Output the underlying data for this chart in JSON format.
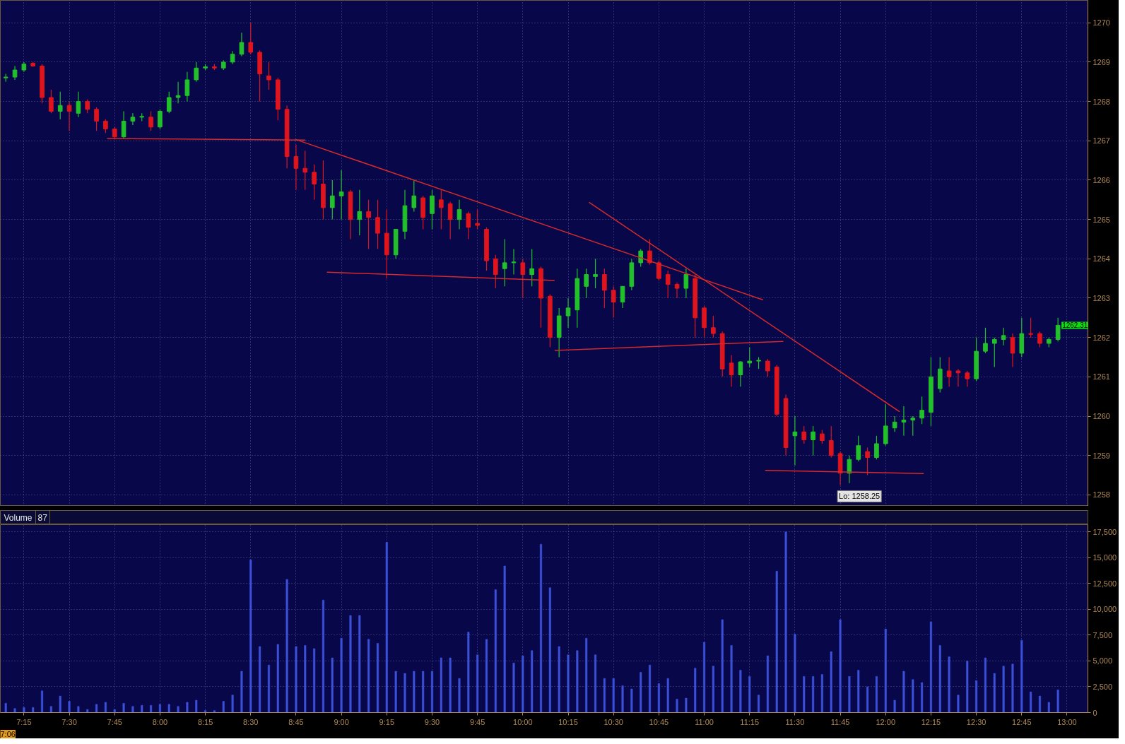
{
  "chart_data": [
    {
      "type": "candlestick",
      "x": [
        7.15,
        7.2,
        7.25,
        7.3,
        7.35,
        7.4,
        7.45,
        7.5,
        7.55,
        7.6,
        7.65,
        7.7,
        7.75,
        7.8,
        7.85,
        7.9,
        7.95,
        8.0,
        8.05,
        8.1,
        8.15,
        8.2,
        8.25,
        8.3,
        8.35,
        8.4,
        8.45,
        8.5,
        8.55,
        8.6,
        8.65,
        8.7,
        8.75,
        8.8,
        8.85,
        8.9,
        8.95,
        9.0,
        9.05,
        9.1,
        9.15,
        9.2,
        9.25,
        9.3,
        9.35,
        9.4,
        9.45,
        9.5,
        9.55,
        9.6,
        9.65,
        9.7,
        9.75,
        9.8,
        9.85,
        9.9,
        9.95,
        10.0,
        10.05,
        10.1,
        10.15,
        10.2,
        10.25,
        10.3,
        10.35,
        10.4,
        10.45,
        10.5,
        10.55,
        10.6,
        10.65,
        10.7,
        10.75,
        10.8,
        10.85,
        10.9,
        10.95,
        11.0,
        11.05,
        11.1,
        11.15,
        11.2,
        11.25,
        11.3,
        11.35,
        11.4,
        11.45,
        11.5,
        11.55,
        11.6,
        11.65,
        11.7,
        11.75,
        11.8,
        11.85,
        11.9,
        11.95,
        12.0,
        12.05,
        12.1,
        12.15,
        12.2,
        12.25,
        12.3,
        12.35,
        12.4,
        12.45,
        12.5,
        12.55,
        12.6,
        12.65,
        12.7,
        12.75,
        12.8,
        12.85,
        12.9,
        12.95
      ],
      "ohlc": [
        [
          1268.6,
          1268.7,
          1268.5,
          1268.62
        ],
        [
          1268.62,
          1268.9,
          1268.55,
          1268.8
        ],
        [
          1268.8,
          1269.0,
          1268.75,
          1268.95
        ],
        [
          1268.97,
          1269.0,
          1268.88,
          1268.9
        ],
        [
          1268.9,
          1268.95,
          1267.95,
          1268.1
        ],
        [
          1268.1,
          1268.3,
          1267.7,
          1267.75
        ],
        [
          1267.75,
          1268.25,
          1267.55,
          1267.9
        ],
        [
          1267.9,
          1268.0,
          1267.25,
          1267.75
        ],
        [
          1267.7,
          1268.25,
          1267.6,
          1268.0
        ],
        [
          1268.0,
          1268.05,
          1267.7,
          1267.8
        ],
        [
          1267.8,
          1267.85,
          1267.25,
          1267.5
        ],
        [
          1267.5,
          1267.55,
          1267.2,
          1267.3
        ],
        [
          1267.3,
          1267.35,
          1267.03,
          1267.1
        ],
        [
          1267.1,
          1267.75,
          1267.05,
          1267.5
        ],
        [
          1267.5,
          1267.7,
          1267.4,
          1267.6
        ],
        [
          1267.6,
          1267.7,
          1267.5,
          1267.62
        ],
        [
          1267.6,
          1267.75,
          1267.25,
          1267.35
        ],
        [
          1267.35,
          1267.8,
          1267.3,
          1267.75
        ],
        [
          1267.75,
          1268.25,
          1267.7,
          1268.1
        ],
        [
          1268.1,
          1268.5,
          1267.95,
          1268.15
        ],
        [
          1268.15,
          1268.75,
          1268.0,
          1268.55
        ],
        [
          1268.55,
          1269.0,
          1268.5,
          1268.85
        ],
        [
          1268.85,
          1268.95,
          1268.8,
          1268.88
        ],
        [
          1268.88,
          1268.95,
          1268.8,
          1268.85
        ],
        [
          1268.85,
          1269.05,
          1268.8,
          1269.0
        ],
        [
          1269.0,
          1269.28,
          1268.95,
          1269.2
        ],
        [
          1269.2,
          1269.75,
          1269.15,
          1269.5
        ],
        [
          1269.5,
          1270.0,
          1269.2,
          1269.25
        ],
        [
          1269.25,
          1269.3,
          1268.0,
          1268.7
        ],
        [
          1268.65,
          1269.0,
          1268.3,
          1268.55
        ],
        [
          1268.55,
          1268.6,
          1267.52,
          1267.8
        ],
        [
          1267.8,
          1267.9,
          1266.3,
          1266.6
        ],
        [
          1266.6,
          1266.9,
          1265.75,
          1266.3
        ],
        [
          1266.3,
          1266.75,
          1265.75,
          1266.2
        ],
        [
          1266.2,
          1266.4,
          1265.5,
          1265.9
        ],
        [
          1265.9,
          1266.5,
          1265.0,
          1265.3
        ],
        [
          1265.3,
          1266.0,
          1265.0,
          1265.6
        ],
        [
          1265.6,
          1266.25,
          1265.0,
          1265.7
        ],
        [
          1265.7,
          1265.75,
          1264.5,
          1265.0
        ],
        [
          1265.0,
          1265.75,
          1264.6,
          1265.2
        ],
        [
          1265.2,
          1265.5,
          1264.25,
          1265.05
        ],
        [
          1265.05,
          1265.5,
          1264.25,
          1264.65
        ],
        [
          1264.65,
          1265.25,
          1263.5,
          1264.1
        ],
        [
          1264.1,
          1264.75,
          1264.0,
          1264.75
        ],
        [
          1264.7,
          1265.75,
          1264.5,
          1265.35
        ],
        [
          1265.3,
          1266.0,
          1265.2,
          1265.6
        ],
        [
          1265.55,
          1265.6,
          1264.75,
          1265.05
        ],
        [
          1265.15,
          1265.75,
          1264.75,
          1265.6
        ],
        [
          1265.5,
          1265.75,
          1264.75,
          1265.3
        ],
        [
          1265.4,
          1265.45,
          1264.5,
          1265.0
        ],
        [
          1265.0,
          1265.5,
          1264.75,
          1265.25
        ],
        [
          1265.15,
          1265.2,
          1264.5,
          1264.8
        ],
        [
          1264.9,
          1265.25,
          1264.75,
          1264.85
        ],
        [
          1264.75,
          1264.8,
          1263.7,
          1263.95
        ],
        [
          1264.0,
          1264.1,
          1263.25,
          1263.6
        ],
        [
          1263.75,
          1264.5,
          1263.3,
          1263.9
        ],
        [
          1263.9,
          1264.25,
          1263.6,
          1263.92
        ],
        [
          1263.9,
          1264.0,
          1263.0,
          1263.6
        ],
        [
          1263.6,
          1264.25,
          1263.3,
          1263.75
        ],
        [
          1263.75,
          1263.8,
          1262.25,
          1263.0
        ],
        [
          1263.05,
          1263.1,
          1261.75,
          1262.0
        ],
        [
          1262.0,
          1262.75,
          1261.5,
          1262.55
        ],
        [
          1262.55,
          1263.0,
          1262.25,
          1262.75
        ],
        [
          1262.7,
          1263.75,
          1262.25,
          1263.5
        ],
        [
          1263.3,
          1263.75,
          1263.0,
          1263.6
        ],
        [
          1263.55,
          1264.0,
          1263.25,
          1263.6
        ],
        [
          1263.6,
          1263.75,
          1262.75,
          1263.2
        ],
        [
          1263.2,
          1263.3,
          1262.5,
          1262.9
        ],
        [
          1262.9,
          1263.3,
          1262.75,
          1263.3
        ],
        [
          1263.3,
          1264.0,
          1263.2,
          1263.9
        ],
        [
          1263.9,
          1264.25,
          1263.8,
          1264.2
        ],
        [
          1264.2,
          1264.5,
          1263.85,
          1263.9
        ],
        [
          1263.9,
          1263.95,
          1263.45,
          1263.5
        ],
        [
          1263.6,
          1263.7,
          1263.0,
          1263.35
        ],
        [
          1263.35,
          1263.4,
          1263.0,
          1263.25
        ],
        [
          1263.25,
          1263.75,
          1263.0,
          1263.6
        ],
        [
          1263.5,
          1263.6,
          1262.0,
          1262.5
        ],
        [
          1262.75,
          1262.8,
          1262.0,
          1262.25
        ],
        [
          1262.25,
          1262.55,
          1262.0,
          1262.1
        ],
        [
          1262.1,
          1262.15,
          1261.0,
          1261.2
        ],
        [
          1261.35,
          1261.55,
          1260.75,
          1261.05
        ],
        [
          1261.05,
          1261.4,
          1260.75,
          1261.38
        ],
        [
          1261.35,
          1261.75,
          1261.25,
          1261.4
        ],
        [
          1261.4,
          1261.5,
          1261.2,
          1261.42
        ],
        [
          1261.4,
          1261.45,
          1261.0,
          1261.15
        ],
        [
          1261.25,
          1261.3,
          1260.0,
          1260.05
        ],
        [
          1260.45,
          1260.55,
          1259.0,
          1259.2
        ],
        [
          1259.5,
          1260.0,
          1258.75,
          1259.6
        ],
        [
          1259.6,
          1259.75,
          1259.3,
          1259.4
        ],
        [
          1259.4,
          1259.75,
          1259.0,
          1259.6
        ],
        [
          1259.55,
          1259.65,
          1259.3,
          1259.38
        ],
        [
          1259.38,
          1259.75,
          1258.95,
          1259.0
        ],
        [
          1259.05,
          1259.1,
          1258.25,
          1258.55
        ],
        [
          1258.55,
          1259.0,
          1258.3,
          1258.9
        ],
        [
          1258.9,
          1259.5,
          1258.85,
          1259.25
        ],
        [
          1259.1,
          1259.2,
          1258.5,
          1258.95
        ],
        [
          1258.95,
          1259.5,
          1258.9,
          1259.3
        ],
        [
          1259.3,
          1260.3,
          1259.25,
          1259.75
        ],
        [
          1259.7,
          1260.0,
          1259.6,
          1259.85
        ],
        [
          1259.85,
          1260.25,
          1259.5,
          1259.9
        ],
        [
          1259.9,
          1260.0,
          1259.5,
          1259.95
        ],
        [
          1259.95,
          1260.5,
          1259.8,
          1260.15
        ],
        [
          1260.1,
          1261.5,
          1259.75,
          1261.0
        ],
        [
          1260.7,
          1261.5,
          1260.6,
          1261.2
        ],
        [
          1261.15,
          1261.5,
          1260.75,
          1261.0
        ],
        [
          1261.15,
          1261.2,
          1260.75,
          1261.1
        ],
        [
          1261.1,
          1261.15,
          1260.75,
          1260.95
        ],
        [
          1260.95,
          1262.0,
          1260.9,
          1261.65
        ],
        [
          1261.65,
          1262.25,
          1261.6,
          1261.85
        ],
        [
          1261.85,
          1262.0,
          1261.25,
          1261.95
        ],
        [
          1261.95,
          1262.25,
          1261.8,
          1262.05
        ],
        [
          1262.0,
          1262.1,
          1261.25,
          1261.6
        ],
        [
          1261.6,
          1262.5,
          1261.5,
          1262.1
        ],
        [
          1262.1,
          1262.5,
          1262.0,
          1262.08
        ],
        [
          1262.1,
          1262.15,
          1261.75,
          1261.85
        ],
        [
          1261.85,
          1262.0,
          1261.75,
          1261.95
        ],
        [
          1261.95,
          1262.5,
          1261.9,
          1262.31
        ]
      ],
      "colors": [
        "#22c02a",
        "#22c02a",
        "#22c02a",
        "#e0141c",
        "#e0141c",
        "#e0141c",
        "#22c02a",
        "#e0141c",
        "#22c02a",
        "#e0141c",
        "#e0141c",
        "#e0141c",
        "#e0141c",
        "#22c02a",
        "#22c02a",
        "#22c02a",
        "#e0141c",
        "#22c02a",
        "#22c02a",
        "#22c02a",
        "#22c02a",
        "#22c02a",
        "#22c02a",
        "#e0141c",
        "#22c02a",
        "#22c02a",
        "#22c02a",
        "#e0141c",
        "#e0141c",
        "#e0141c",
        "#e0141c",
        "#e0141c",
        "#e0141c",
        "#e0141c",
        "#e0141c",
        "#e0141c",
        "#22c02a",
        "#22c02a",
        "#e0141c",
        "#22c02a",
        "#e0141c",
        "#e0141c",
        "#e0141c",
        "#22c02a",
        "#22c02a",
        "#22c02a",
        "#e0141c",
        "#22c02a",
        "#e0141c",
        "#e0141c",
        "#22c02a",
        "#e0141c",
        "#e0141c",
        "#e0141c",
        "#e0141c",
        "#22c02a",
        "#22c02a",
        "#e0141c",
        "#22c02a",
        "#e0141c",
        "#e0141c",
        "#22c02a",
        "#22c02a",
        "#22c02a",
        "#22c02a",
        "#22c02a",
        "#e0141c",
        "#e0141c",
        "#22c02a",
        "#22c02a",
        "#22c02a",
        "#e0141c",
        "#e0141c",
        "#e0141c",
        "#e0141c",
        "#22c02a",
        "#e0141c",
        "#e0141c",
        "#e0141c",
        "#e0141c",
        "#e0141c",
        "#22c02a",
        "#22c02a",
        "#22c02a",
        "#e0141c",
        "#e0141c",
        "#e0141c",
        "#22c02a",
        "#e0141c",
        "#22c02a",
        "#e0141c",
        "#e0141c",
        "#e0141c",
        "#22c02a",
        "#22c02a",
        "#e0141c",
        "#22c02a",
        "#22c02a",
        "#22c02a",
        "#22c02a",
        "#22c02a",
        "#22c02a",
        "#22c02a",
        "#22c02a",
        "#e0141c",
        "#e0141c",
        "#e0141c",
        "#22c02a",
        "#22c02a",
        "#22c02a",
        "#22c02a",
        "#e0141c",
        "#22c02a",
        "#e0141c",
        "#e0141c",
        "#22c02a",
        "#22c02a"
      ],
      "series": [
        {
          "type": "line",
          "color": "#d42a2a",
          "x": [
            7.71,
            8.8
          ],
          "values": [
            1267.06,
            1267.02
          ]
        },
        {
          "type": "line",
          "color": "#d42a2a",
          "x": [
            8.75,
            11.322
          ],
          "values": [
            1267.03,
            1262.96
          ]
        },
        {
          "type": "line",
          "color": "#d42a2a",
          "x": [
            8.922,
            10.173
          ],
          "values": [
            1263.66,
            1263.45
          ]
        },
        {
          "type": "line",
          "color": "#d42a2a",
          "x": [
            10.178,
            11.434
          ],
          "values": [
            1261.67,
            1261.9
          ]
        },
        {
          "type": "line",
          "color": "#d42a2a",
          "x": [
            10.367,
            12.075
          ],
          "values": [
            1265.43,
            1260.12
          ]
        },
        {
          "type": "line",
          "color": "#d42a2a",
          "x": [
            11.338,
            12.208
          ],
          "values": [
            1258.62,
            1258.54
          ]
        }
      ],
      "xlim": [
        7.12,
        13.115
      ],
      "ylim": [
        1257.71,
        1270.57
      ],
      "xticks": [
        7.25,
        7.5,
        7.75,
        8,
        8.25,
        8.5,
        8.75,
        9,
        9.25,
        9.5,
        9.75,
        10,
        10.25,
        10.5,
        10.75,
        11,
        11.25,
        11.5,
        11.75,
        12,
        12.25,
        12.5,
        12.75,
        13
      ],
      "yticks": [
        1258,
        1259,
        1260,
        1261,
        1262,
        1263,
        1264,
        1265,
        1266,
        1267,
        1268,
        1269,
        1270
      ],
      "grid": true,
      "tick_labels": "y",
      "annotations": [
        {
          "text": "Lo: 1258.25",
          "x": 11.75,
          "y": 1258.25
        },
        {
          "text": "1262.31",
          "x": 12.95,
          "y": 1262.31
        }
      ]
    },
    {
      "type": "bar",
      "title": "Volume",
      "subtitle": "87",
      "x": [
        7.15,
        7.2,
        7.25,
        7.3,
        7.35,
        7.4,
        7.45,
        7.5,
        7.55,
        7.6,
        7.65,
        7.7,
        7.75,
        7.8,
        7.85,
        7.9,
        7.95,
        8.0,
        8.05,
        8.1,
        8.15,
        8.2,
        8.25,
        8.3,
        8.35,
        8.4,
        8.45,
        8.5,
        8.55,
        8.6,
        8.65,
        8.7,
        8.75,
        8.8,
        8.85,
        8.9,
        8.95,
        9.0,
        9.05,
        9.1,
        9.15,
        9.2,
        9.25,
        9.3,
        9.35,
        9.4,
        9.45,
        9.5,
        9.55,
        9.6,
        9.65,
        9.7,
        9.75,
        9.8,
        9.85,
        9.9,
        9.95,
        10.0,
        10.05,
        10.1,
        10.15,
        10.2,
        10.25,
        10.3,
        10.35,
        10.4,
        10.45,
        10.5,
        10.55,
        10.6,
        10.65,
        10.7,
        10.75,
        10.8,
        10.85,
        10.9,
        10.95,
        11.0,
        11.05,
        11.1,
        11.15,
        11.2,
        11.25,
        11.3,
        11.35,
        11.4,
        11.45,
        11.5,
        11.55,
        11.6,
        11.65,
        11.7,
        11.75,
        11.8,
        11.85,
        11.9,
        11.95,
        12.0,
        12.05,
        12.1,
        12.15,
        12.2,
        12.25,
        12.3,
        12.35,
        12.4,
        12.45,
        12.5,
        12.55,
        12.6,
        12.65,
        12.7,
        12.75,
        12.8,
        12.85,
        12.9,
        12.95
      ],
      "values": [
        900,
        400,
        500,
        500,
        2100,
        600,
        1600,
        1100,
        600,
        300,
        800,
        1000,
        300,
        900,
        600,
        700,
        700,
        800,
        800,
        600,
        1000,
        1200,
        200,
        200,
        1100,
        1700,
        4000,
        14800,
        6400,
        4600,
        6600,
        12900,
        6400,
        6500,
        6200,
        10900,
        5300,
        7200,
        9400,
        9400,
        7100,
        6700,
        16500,
        4000,
        3800,
        4000,
        4000,
        4000,
        5300,
        5300,
        3300,
        7800,
        5600,
        7100,
        11900,
        14200,
        4800,
        5500,
        6000,
        16300,
        12100,
        6400,
        5600,
        6000,
        7200,
        5600,
        3300,
        3300,
        2600,
        2300,
        3900,
        4600,
        2800,
        3300,
        1300,
        1400,
        4300,
        6800,
        4500,
        9000,
        6500,
        4100,
        3500,
        1700,
        5500,
        13700,
        17500,
        7600,
        3500,
        3500,
        3700,
        5900,
        9000,
        3500,
        4100,
        2500,
        3500,
        8100,
        1200,
        4000,
        3200,
        2900,
        8800,
        6500,
        5400,
        1700,
        5000,
        3100,
        5300,
        3800,
        4500,
        4700,
        7000,
        2000,
        1600,
        1000,
        2200
      ],
      "color": "#3c50d8",
      "xlim": [
        7.12,
        13.115
      ],
      "ylim": [
        0,
        18200
      ],
      "xticks": [
        {
          "value": 7.25,
          "label": "7:15"
        },
        {
          "value": 7.5,
          "label": "7:30"
        },
        {
          "value": 7.75,
          "label": "7:45"
        },
        {
          "value": 8,
          "label": "8:00"
        },
        {
          "value": 8.25,
          "label": "8:15"
        },
        {
          "value": 8.5,
          "label": "8:30"
        },
        {
          "value": 8.75,
          "label": "8:45"
        },
        {
          "value": 9,
          "label": "9:00"
        },
        {
          "value": 9.25,
          "label": "9:15"
        },
        {
          "value": 9.5,
          "label": "9:30"
        },
        {
          "value": 9.75,
          "label": "9:45"
        },
        {
          "value": 10,
          "label": "10:00"
        },
        {
          "value": 10.25,
          "label": "10:15"
        },
        {
          "value": 10.5,
          "label": "10:30"
        },
        {
          "value": 10.75,
          "label": "10:45"
        },
        {
          "value": 11,
          "label": "11:00"
        },
        {
          "value": 11.25,
          "label": "11:15"
        },
        {
          "value": 11.5,
          "label": "11:30"
        },
        {
          "value": 11.75,
          "label": "11:45"
        },
        {
          "value": 12,
          "label": "12:00"
        },
        {
          "value": 12.25,
          "label": "12:15"
        },
        {
          "value": 12.5,
          "label": "12:30"
        },
        {
          "value": 12.75,
          "label": "12:45"
        },
        {
          "value": 13,
          "label": "13:00"
        }
      ],
      "yticks": [
        0,
        {
          "value": 2500,
          "label": "2,500"
        },
        {
          "value": 5000,
          "label": "5,000"
        },
        {
          "value": 7500,
          "label": "7,500"
        },
        {
          "value": 10000,
          "label": "10,000"
        },
        {
          "value": 12500,
          "label": "12,500"
        },
        {
          "value": 15000,
          "label": "15,000"
        },
        {
          "value": 17500,
          "label": "17,500"
        }
      ],
      "grid": true,
      "annotations": [
        "7:06"
      ]
    }
  ]
}
